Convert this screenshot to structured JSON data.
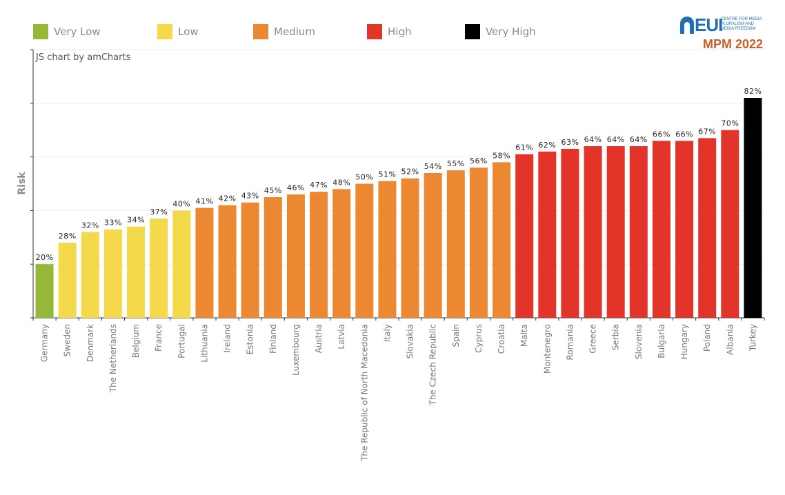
{
  "legend": [
    {
      "label": "Very Low",
      "color": "#96b83a"
    },
    {
      "label": "Low",
      "color": "#f4d94a"
    },
    {
      "label": "Medium",
      "color": "#ec8832"
    },
    {
      "label": "High",
      "color": "#e3342a"
    },
    {
      "label": "Very High",
      "color": "#000000"
    }
  ],
  "logo": {
    "org": "EUI",
    "centre": [
      "CENTRE FOR MEDIA",
      "PLURALISM AND",
      "MEDIA FREEDOM"
    ],
    "edition": "MPM 2022"
  },
  "credit": "JS chart by amCharts",
  "chart_data": {
    "type": "bar",
    "title": "",
    "xlabel": "",
    "ylabel": "Risk",
    "ylim": [
      0,
      100
    ],
    "y_gridlines": [
      0,
      20,
      40,
      60,
      80,
      100
    ],
    "value_suffix": "%",
    "categories": [
      "Germany",
      "Sweden",
      "Denmark",
      "The Netherlands",
      "Belgium",
      "France",
      "Portugal",
      "Lithuania",
      "Ireland",
      "Estonia",
      "Finland",
      "Luxembourg",
      "Austria",
      "Latvia",
      "The Republic of North Macedonia",
      "Italy",
      "Slovakia",
      "The Czech Republic",
      "Spain",
      "Cyprus",
      "Croatia",
      "Malta",
      "Montenegro",
      "Romania",
      "Greece",
      "Serbia",
      "Slovenia",
      "Bulgaria",
      "Hungary",
      "Poland",
      "Albania",
      "Turkey"
    ],
    "values": [
      20,
      28,
      32,
      33,
      34,
      37,
      40,
      41,
      42,
      43,
      45,
      46,
      47,
      48,
      50,
      51,
      52,
      54,
      55,
      56,
      58,
      61,
      62,
      63,
      64,
      64,
      64,
      66,
      66,
      67,
      70,
      82
    ],
    "risk_levels": [
      "Very Low",
      "Low",
      "Low",
      "Low",
      "Low",
      "Low",
      "Low",
      "Medium",
      "Medium",
      "Medium",
      "Medium",
      "Medium",
      "Medium",
      "Medium",
      "Medium",
      "Medium",
      "Medium",
      "Medium",
      "Medium",
      "Medium",
      "Medium",
      "High",
      "High",
      "High",
      "High",
      "High",
      "High",
      "High",
      "High",
      "High",
      "High",
      "Very High"
    ]
  }
}
